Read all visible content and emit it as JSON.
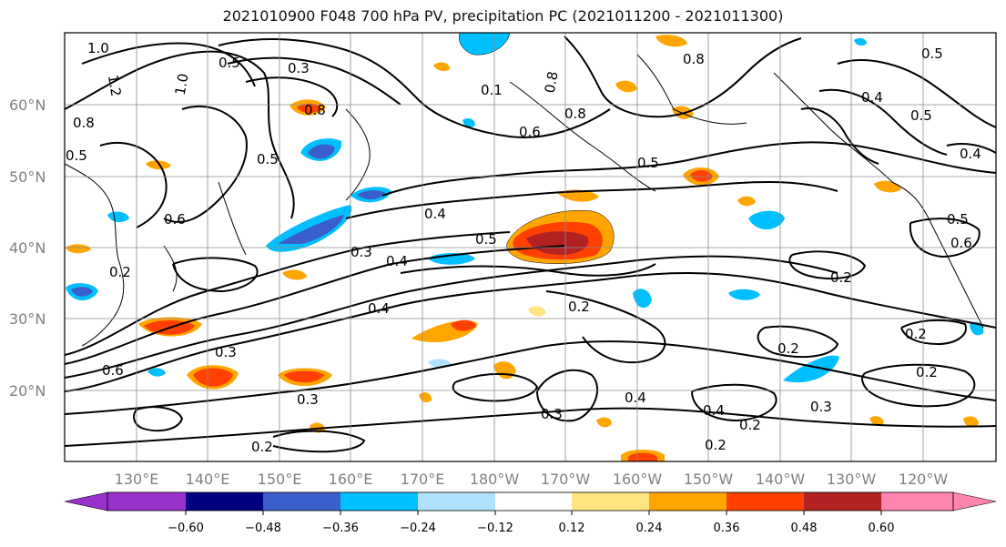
{
  "title": "2021010900 F048 700 hPa PV, precipitation PC (2021011200 - 2021011300)",
  "lat_labels": [
    "60°N",
    "50°N",
    "40°N",
    "30°N",
    "20°N"
  ],
  "lon_labels": [
    "130°E",
    "140°E",
    "150°E",
    "160°E",
    "170°E",
    "180°W",
    "170°W",
    "160°W",
    "150°W",
    "140°W",
    "130°W",
    "120°W"
  ],
  "contour_labels": [
    "1.0",
    "1.2",
    "1.0",
    "0.5",
    "0.3",
    "0.8",
    "0.8",
    "0.1",
    "0.8",
    "0.5",
    "0.5",
    "0.8",
    "0.6",
    "0.8",
    "0.5",
    "0.4",
    "0.5",
    "0.4",
    "0.5",
    "0.3",
    "0.4",
    "0.6",
    "0.3",
    "0.4",
    "0.4",
    "0.5",
    "0.2",
    "0.2",
    "0.2",
    "0.3",
    "0.2",
    "0.6",
    "0.2",
    "0.2",
    "0.4",
    "0.3",
    "0.4",
    "0.2",
    "0.3",
    "0.2",
    "0.2",
    "0.6",
    "0.5"
  ],
  "colorbar": {
    "ticks": [
      "−0.60",
      "−0.48",
      "−0.36",
      "−0.24",
      "−0.12",
      "0.12",
      "0.24",
      "0.36",
      "0.48",
      "0.60"
    ],
    "colors": [
      "#9932cc",
      "#000080",
      "#3a5fcd",
      "#00bfff",
      "#b0e2ff",
      "#ffffff",
      "#ffe57f",
      "#ffa500",
      "#ff4000",
      "#b22222",
      "#ff85b0"
    ]
  }
}
